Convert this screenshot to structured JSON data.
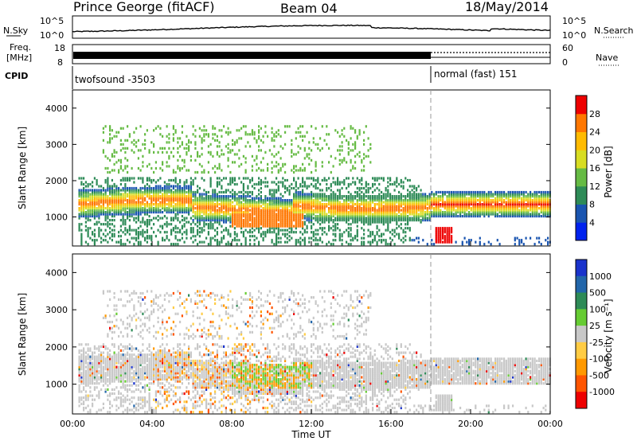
{
  "header": {
    "station": "Prince George (fitACF)",
    "beam": "Beam 04",
    "date": "18/May/2014"
  },
  "noise_panel": {
    "left_label": "N.Sky",
    "right_label": "N.Search",
    "top_tick": "10^5",
    "bottom_tick": "10^0",
    "right_top_tick": "10^5",
    "right_bottom_tick": "10^0"
  },
  "freq_panel": {
    "left_label_1": "Freq.",
    "left_label_2": "[MHz]",
    "left_ticks": [
      "18",
      "8"
    ],
    "right_label": "Nave",
    "right_ticks": [
      "60",
      "0"
    ]
  },
  "cpid": {
    "label": "CPID",
    "segments": [
      {
        "name": "twofsound -3503",
        "start_hour": 0
      },
      {
        "name": "normal (fast) 151",
        "start_hour": 18
      }
    ]
  },
  "chart_data": [
    {
      "type": "heatmap",
      "quantity": "Power",
      "ylabel": "Slant Range [km]",
      "xlabel": "Time UT",
      "ylim": [
        200,
        4500
      ],
      "yticks": [
        1000,
        2000,
        3000,
        4000
      ],
      "xticks": [
        "00:00",
        "04:00",
        "08:00",
        "12:00",
        "16:00",
        "20:00",
        "00:00"
      ],
      "colorbar_label": "Power [dB]",
      "colorbar_ticks": [
        "4",
        "8",
        "12",
        "16",
        "20",
        "24",
        "28"
      ],
      "colorbar_colors": [
        "#0022ee",
        "#1a55b0",
        "#2e8b57",
        "#66bb44",
        "#d8dd22",
        "#ffbb00",
        "#ff7700",
        "#ee0000"
      ]
    },
    {
      "type": "heatmap",
      "quantity": "Velocity",
      "ylabel": "Slant Range [km]",
      "xlabel": "Time UT",
      "ylim": [
        200,
        4500
      ],
      "yticks": [
        1000,
        2000,
        3000,
        4000
      ],
      "xticks": [
        "00:00",
        "04:00",
        "08:00",
        "12:00",
        "16:00",
        "20:00",
        "00:00"
      ],
      "colorbar_label": "Velocity [m s⁻¹]",
      "colorbar_ticks": [
        "1000",
        "500",
        "100",
        "25",
        "-25",
        "-100",
        "-500",
        "-1000"
      ],
      "colorbar_colors": [
        "#1a33cc",
        "#2266aa",
        "#2e8b57",
        "#66cc33",
        "#c8c8c8",
        "#ffcc44",
        "#ff9900",
        "#ff5500",
        "#ee0000"
      ]
    }
  ],
  "mode_change_hour": 18
}
